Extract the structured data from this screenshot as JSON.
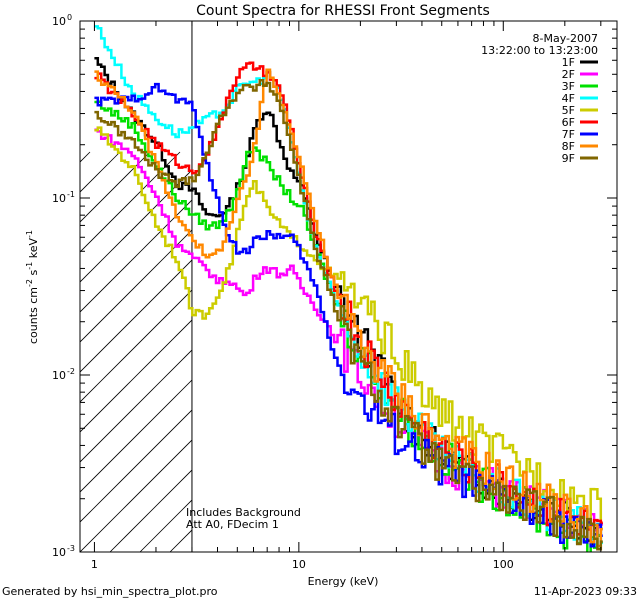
{
  "chart_data": {
    "type": "line",
    "title": "Count Spectra for RHESSI Front Segments",
    "xlabel": "Energy (keV)",
    "ylabel": "counts cm",
    "ylabel_exp1": "-2",
    "ylabel_mid": " s",
    "ylabel_exp2": "-1",
    "ylabel_mid2": " keV",
    "ylabel_exp3": "-1",
    "xscale": "log",
    "yscale": "log",
    "xlim": [
      0.85,
      360
    ],
    "ylim": [
      0.001,
      1.0
    ],
    "x_ticks": [
      {
        "value": 1,
        "label": "1"
      },
      {
        "value": 10,
        "label": "10"
      },
      {
        "value": 100,
        "label": "100"
      }
    ],
    "y_ticks": [
      {
        "value": 1,
        "mantissa": "10",
        "exp": "0"
      },
      {
        "value": 0.1,
        "mantissa": "10",
        "exp": "-1"
      },
      {
        "value": 0.01,
        "mantissa": "10",
        "exp": "-2"
      },
      {
        "value": 0.001,
        "mantissa": "10",
        "exp": "-3"
      }
    ],
    "hatched_region": {
      "x_from": 0.85,
      "x_to": 3.0
    },
    "date": "8-May-2007",
    "time_range": "13:22:00 to 13:23:00",
    "annotations": [
      "Includes Background",
      "Att A0, FDecim 1"
    ],
    "footer_left": "Generated by hsi_min_spectra_plot.pro",
    "footer_right": "11-Apr-2023 09:33",
    "series": [
      {
        "name": "1F",
        "color": "#000000",
        "points": [
          [
            1,
            0.6
          ],
          [
            1.5,
            0.3
          ],
          [
            2,
            0.2
          ],
          [
            2.5,
            0.12
          ],
          [
            3,
            0.11
          ],
          [
            3.5,
            0.08
          ],
          [
            4,
            0.08
          ],
          [
            4.5,
            0.09
          ],
          [
            5,
            0.12
          ],
          [
            5.5,
            0.17
          ],
          [
            6,
            0.25
          ],
          [
            6.5,
            0.3
          ],
          [
            7,
            0.32
          ],
          [
            8,
            0.2
          ],
          [
            9,
            0.14
          ],
          [
            10,
            0.12
          ],
          [
            12,
            0.06
          ],
          [
            15,
            0.03
          ],
          [
            20,
            0.016
          ],
          [
            30,
            0.007
          ],
          [
            40,
            0.0045
          ],
          [
            50,
            0.0035
          ],
          [
            70,
            0.0028
          ],
          [
            100,
            0.0022
          ],
          [
            150,
            0.0018
          ],
          [
            200,
            0.0017
          ],
          [
            250,
            0.0014
          ],
          [
            300,
            0.0013
          ]
        ]
      },
      {
        "name": "2F",
        "color": "#ff00ff",
        "points": [
          [
            1,
            0.24
          ],
          [
            1.5,
            0.18
          ],
          [
            2,
            0.1
          ],
          [
            2.5,
            0.055
          ],
          [
            3,
            0.045
          ],
          [
            3.5,
            0.04
          ],
          [
            4,
            0.033
          ],
          [
            4.5,
            0.035
          ],
          [
            5,
            0.03
          ],
          [
            5.5,
            0.028
          ],
          [
            6,
            0.035
          ],
          [
            6.5,
            0.04
          ],
          [
            7,
            0.04
          ],
          [
            8,
            0.037
          ],
          [
            9,
            0.04
          ],
          [
            10,
            0.032
          ],
          [
            12,
            0.024
          ],
          [
            15,
            0.016
          ],
          [
            20,
            0.01
          ],
          [
            30,
            0.0055
          ],
          [
            40,
            0.004
          ],
          [
            50,
            0.0032
          ],
          [
            70,
            0.0026
          ],
          [
            100,
            0.0022
          ],
          [
            150,
            0.0018
          ],
          [
            200,
            0.0016
          ],
          [
            250,
            0.0014
          ],
          [
            300,
            0.0014
          ]
        ]
      },
      {
        "name": "3F",
        "color": "#00e000",
        "points": [
          [
            1,
            0.35
          ],
          [
            1.5,
            0.26
          ],
          [
            2,
            0.15
          ],
          [
            2.5,
            0.1
          ],
          [
            3,
            0.08
          ],
          [
            3.5,
            0.07
          ],
          [
            4,
            0.07
          ],
          [
            4.5,
            0.085
          ],
          [
            5,
            0.12
          ],
          [
            5.5,
            0.17
          ],
          [
            6,
            0.2
          ],
          [
            6.5,
            0.17
          ],
          [
            7,
            0.15
          ],
          [
            8,
            0.12
          ],
          [
            9,
            0.1
          ],
          [
            10,
            0.09
          ],
          [
            12,
            0.05
          ],
          [
            15,
            0.025
          ],
          [
            20,
            0.013
          ],
          [
            30,
            0.0065
          ],
          [
            40,
            0.0042
          ],
          [
            50,
            0.0034
          ],
          [
            70,
            0.0026
          ],
          [
            100,
            0.0021
          ],
          [
            150,
            0.0016
          ],
          [
            200,
            0.0013
          ],
          [
            250,
            0.0012
          ],
          [
            300,
            0.0012
          ]
        ]
      },
      {
        "name": "4F",
        "color": "#00ffff",
        "points": [
          [
            1,
            0.95
          ],
          [
            1.5,
            0.4
          ],
          [
            2,
            0.28
          ],
          [
            2.5,
            0.23
          ],
          [
            3,
            0.25
          ],
          [
            3.5,
            0.28
          ],
          [
            4,
            0.3
          ],
          [
            4.5,
            0.35
          ],
          [
            5,
            0.42
          ],
          [
            5.5,
            0.45
          ],
          [
            6,
            0.45
          ],
          [
            6.5,
            0.47
          ],
          [
            7,
            0.5
          ],
          [
            8,
            0.38
          ],
          [
            9,
            0.22
          ],
          [
            10,
            0.12
          ],
          [
            12,
            0.05
          ],
          [
            15,
            0.025
          ],
          [
            20,
            0.013
          ],
          [
            30,
            0.007
          ],
          [
            40,
            0.0045
          ],
          [
            50,
            0.0035
          ],
          [
            70,
            0.0028
          ],
          [
            100,
            0.0022
          ],
          [
            150,
            0.0017
          ],
          [
            200,
            0.0015
          ],
          [
            250,
            0.0014
          ],
          [
            300,
            0.0013
          ]
        ]
      },
      {
        "name": "5F",
        "color": "#cccc00",
        "points": [
          [
            1,
            0.25
          ],
          [
            1.5,
            0.15
          ],
          [
            2,
            0.07
          ],
          [
            2.5,
            0.045
          ],
          [
            3,
            0.022
          ],
          [
            3.5,
            0.022
          ],
          [
            4,
            0.03
          ],
          [
            4.5,
            0.04
          ],
          [
            5,
            0.07
          ],
          [
            5.5,
            0.1
          ],
          [
            6,
            0.12
          ],
          [
            6.5,
            0.1
          ],
          [
            7,
            0.085
          ],
          [
            8,
            0.07
          ],
          [
            9,
            0.06
          ],
          [
            10,
            0.055
          ],
          [
            12,
            0.045
          ],
          [
            15,
            0.035
          ],
          [
            20,
            0.025
          ],
          [
            30,
            0.013
          ],
          [
            40,
            0.0075
          ],
          [
            50,
            0.006
          ],
          [
            70,
            0.0045
          ],
          [
            100,
            0.0035
          ],
          [
            150,
            0.0027
          ],
          [
            200,
            0.0022
          ],
          [
            250,
            0.0019
          ],
          [
            300,
            0.0017
          ]
        ]
      },
      {
        "name": "6F",
        "color": "#ff0000",
        "points": [
          [
            1,
            0.5
          ],
          [
            1.5,
            0.3
          ],
          [
            2,
            0.2
          ],
          [
            2.5,
            0.16
          ],
          [
            3,
            0.14
          ],
          [
            3.5,
            0.18
          ],
          [
            4,
            0.25
          ],
          [
            4.5,
            0.4
          ],
          [
            5,
            0.5
          ],
          [
            5.5,
            0.55
          ],
          [
            6,
            0.55
          ],
          [
            6.5,
            0.52
          ],
          [
            7,
            0.5
          ],
          [
            8,
            0.4
          ],
          [
            9,
            0.25
          ],
          [
            10,
            0.14
          ],
          [
            12,
            0.06
          ],
          [
            15,
            0.03
          ],
          [
            20,
            0.015
          ],
          [
            30,
            0.007
          ],
          [
            40,
            0.0048
          ],
          [
            50,
            0.0038
          ],
          [
            70,
            0.003
          ],
          [
            100,
            0.0024
          ],
          [
            150,
            0.0019
          ],
          [
            200,
            0.0016
          ],
          [
            250,
            0.0014
          ],
          [
            300,
            0.0012
          ]
        ]
      },
      {
        "name": "7F",
        "color": "#0000ff",
        "points": [
          [
            1,
            0.35
          ],
          [
            1.5,
            0.36
          ],
          [
            2,
            0.42
          ],
          [
            2.5,
            0.36
          ],
          [
            3,
            0.33
          ],
          [
            3.5,
            0.15
          ],
          [
            4,
            0.09
          ],
          [
            4.5,
            0.06
          ],
          [
            5,
            0.05
          ],
          [
            5.5,
            0.05
          ],
          [
            6,
            0.06
          ],
          [
            6.5,
            0.055
          ],
          [
            7,
            0.065
          ],
          [
            8,
            0.06
          ],
          [
            9,
            0.06
          ],
          [
            10,
            0.05
          ],
          [
            12,
            0.03
          ],
          [
            15,
            0.012
          ],
          [
            20,
            0.007
          ],
          [
            30,
            0.0045
          ],
          [
            40,
            0.0035
          ],
          [
            50,
            0.003
          ],
          [
            70,
            0.0024
          ],
          [
            100,
            0.002
          ],
          [
            150,
            0.0016
          ],
          [
            200,
            0.0014
          ],
          [
            250,
            0.0012
          ],
          [
            300,
            0.0011
          ]
        ]
      },
      {
        "name": "8F",
        "color": "#ff8800",
        "points": [
          [
            1,
            0.5
          ],
          [
            1.5,
            0.32
          ],
          [
            2,
            0.15
          ],
          [
            2.5,
            0.08
          ],
          [
            3,
            0.06
          ],
          [
            3.5,
            0.045
          ],
          [
            4,
            0.05
          ],
          [
            4.5,
            0.07
          ],
          [
            5,
            0.1
          ],
          [
            5.5,
            0.13
          ],
          [
            6,
            0.2
          ],
          [
            6.5,
            0.35
          ],
          [
            7,
            0.55
          ],
          [
            8,
            0.35
          ],
          [
            9,
            0.25
          ],
          [
            10,
            0.16
          ],
          [
            12,
            0.07
          ],
          [
            15,
            0.03
          ],
          [
            20,
            0.015
          ],
          [
            30,
            0.008
          ],
          [
            40,
            0.0055
          ],
          [
            50,
            0.0042
          ],
          [
            70,
            0.0033
          ],
          [
            100,
            0.0026
          ],
          [
            150,
            0.002
          ],
          [
            200,
            0.0017
          ],
          [
            250,
            0.0015
          ],
          [
            300,
            0.0013
          ]
        ]
      },
      {
        "name": "9F",
        "color": "#806600",
        "points": [
          [
            1,
            0.3
          ],
          [
            1.5,
            0.21
          ],
          [
            2,
            0.14
          ],
          [
            2.5,
            0.12
          ],
          [
            3,
            0.13
          ],
          [
            3.5,
            0.18
          ],
          [
            4,
            0.27
          ],
          [
            4.5,
            0.35
          ],
          [
            5,
            0.4
          ],
          [
            5.5,
            0.42
          ],
          [
            6,
            0.42
          ],
          [
            6.5,
            0.44
          ],
          [
            7,
            0.45
          ],
          [
            8,
            0.33
          ],
          [
            9,
            0.2
          ],
          [
            10,
            0.12
          ],
          [
            12,
            0.05
          ],
          [
            15,
            0.023
          ],
          [
            20,
            0.011
          ],
          [
            30,
            0.0055
          ],
          [
            40,
            0.0038
          ],
          [
            50,
            0.003
          ],
          [
            70,
            0.0024
          ],
          [
            100,
            0.002
          ],
          [
            150,
            0.0017
          ],
          [
            200,
            0.0015
          ],
          [
            250,
            0.0013
          ],
          [
            300,
            0.0012
          ]
        ]
      }
    ]
  }
}
